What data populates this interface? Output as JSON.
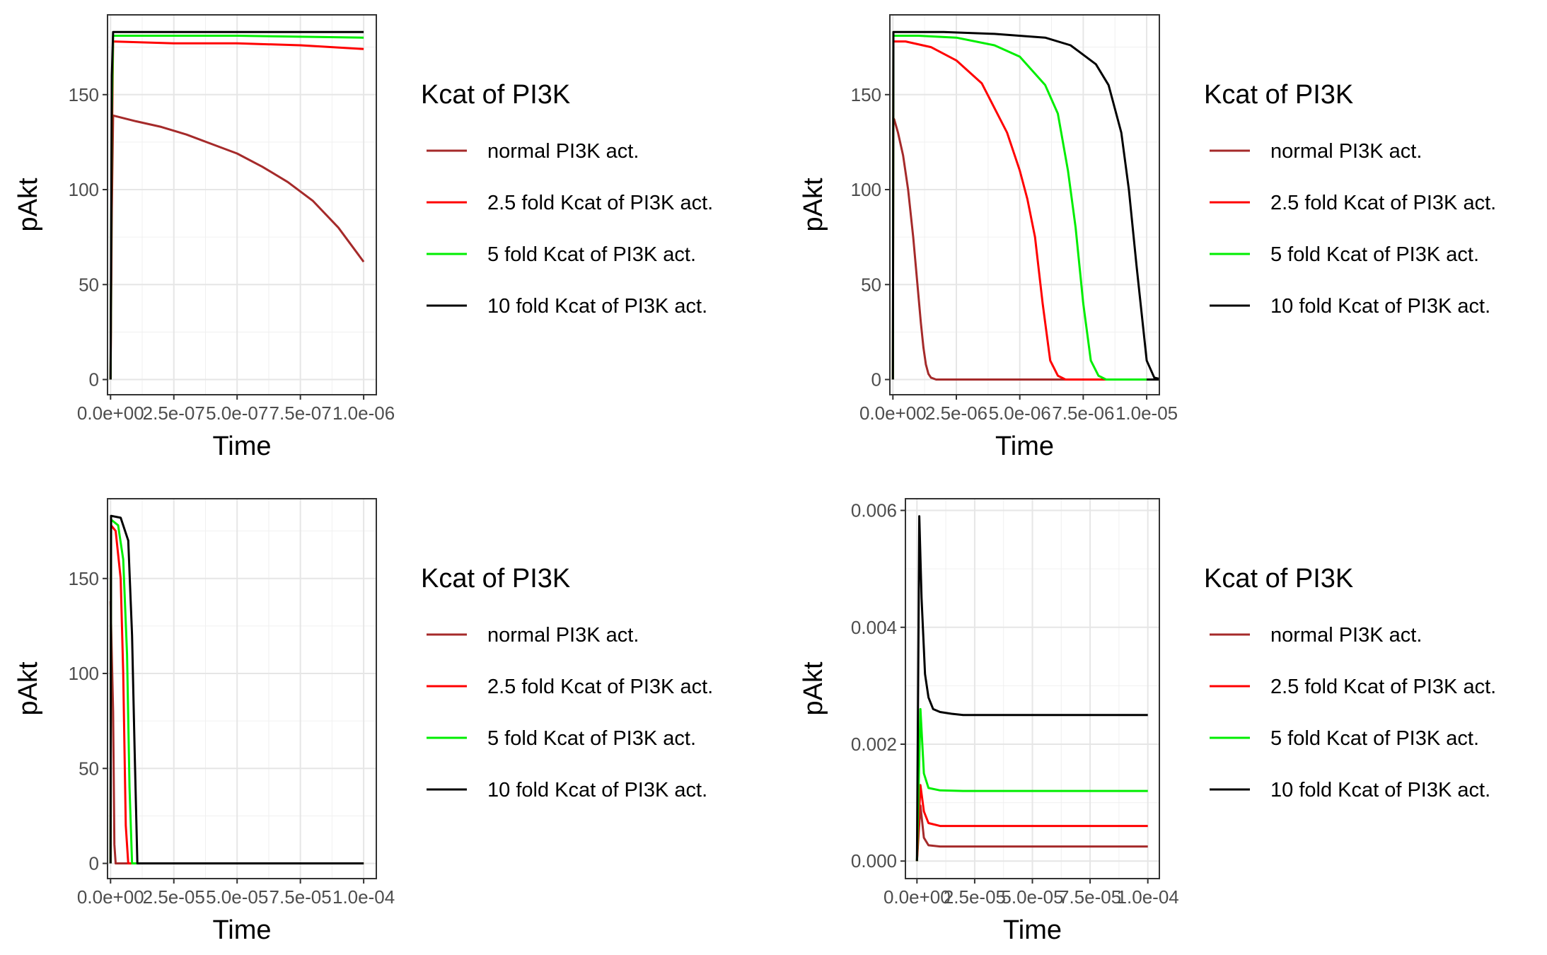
{
  "chart_data": [
    {
      "type": "line",
      "xlabel": "Time",
      "ylabel": "pAkt",
      "xlim": [
        -1.2e-08,
        1.05e-06
      ],
      "ylim": [
        -8,
        192
      ],
      "xticks": [
        0,
        2.5e-07,
        5e-07,
        7.5e-07,
        1e-06
      ],
      "xtick_labels": [
        "0.0e+00",
        "2.5e-07",
        "5.0e-07",
        "7.5e-07",
        "1.0e-06"
      ],
      "yticks": [
        0,
        50,
        100,
        150
      ],
      "ytick_labels": [
        "0",
        "50",
        "100",
        "150"
      ],
      "legend": {
        "title": "Kcat of PI3K",
        "position": "right"
      },
      "series": [
        {
          "name": "normal PI3K act.",
          "color": "#a52a2a",
          "x": [
            0,
            5e-09,
            1e-08,
            1e-07,
            2e-07,
            3e-07,
            4e-07,
            5e-07,
            6e-07,
            7e-07,
            8e-07,
            9e-07,
            1e-06
          ],
          "y": [
            0,
            90,
            139,
            136,
            133,
            129,
            124,
            119,
            112,
            104,
            94,
            80,
            62
          ]
        },
        {
          "name": "2.5 fold Kcat of PI3K act.",
          "color": "#ff0000",
          "x": [
            0,
            5e-09,
            1e-08,
            2.5e-07,
            5e-07,
            7.5e-07,
            1e-06
          ],
          "y": [
            0,
            120,
            178,
            177,
            177,
            176,
            174
          ]
        },
        {
          "name": "5 fold Kcat of PI3K act.",
          "color": "#00ee00",
          "x": [
            0,
            5e-09,
            1e-08,
            5e-07,
            1e-06
          ],
          "y": [
            0,
            140,
            181,
            181,
            180
          ]
        },
        {
          "name": "10 fold Kcat of PI3K act.",
          "color": "#000000",
          "x": [
            0,
            5e-09,
            1e-08,
            5e-07,
            1e-06
          ],
          "y": [
            0,
            160,
            183,
            183,
            183
          ]
        }
      ]
    },
    {
      "type": "line",
      "xlabel": "Time",
      "ylabel": "pAkt",
      "xlim": [
        -1.2e-07,
        1.05e-05
      ],
      "ylim": [
        -8,
        192
      ],
      "xticks": [
        0,
        2.5e-06,
        5e-06,
        7.5e-06,
        1e-05
      ],
      "xtick_labels": [
        "0.0e+00",
        "2.5e-06",
        "5.0e-06",
        "7.5e-06",
        "1.0e-05"
      ],
      "yticks": [
        0,
        50,
        100,
        150
      ],
      "ytick_labels": [
        "0",
        "50",
        "100",
        "150"
      ],
      "legend": {
        "title": "Kcat of PI3K",
        "position": "right"
      },
      "series": [
        {
          "name": "normal PI3K act.",
          "color": "#a52a2a",
          "x": [
            0,
            5e-08,
            2e-07,
            4e-07,
            6e-07,
            8e-07,
            1e-06,
            1.1e-06,
            1.2e-06,
            1.3e-06,
            1.4e-06,
            1.5e-06,
            1.7e-06,
            2e-06,
            1e-05
          ],
          "y": [
            138,
            137,
            130,
            118,
            100,
            75,
            45,
            30,
            17,
            8,
            3,
            1,
            0,
            0,
            0
          ]
        },
        {
          "name": "2.5 fold Kcat of PI3K act.",
          "color": "#ff0000",
          "x": [
            0,
            2e-08,
            5e-07,
            1.5e-06,
            2.5e-06,
            3.5e-06,
            4.5e-06,
            5e-06,
            5.3e-06,
            5.6e-06,
            5.9e-06,
            6.2e-06,
            6.5e-06,
            6.8e-06,
            1e-05
          ],
          "y": [
            0,
            178,
            178,
            175,
            168,
            156,
            130,
            110,
            95,
            75,
            40,
            10,
            2,
            0,
            0
          ]
        },
        {
          "name": "5 fold Kcat of PI3K act.",
          "color": "#00ee00",
          "x": [
            0,
            2e-08,
            1e-06,
            2.5e-06,
            4e-06,
            5e-06,
            6e-06,
            6.5e-06,
            6.9e-06,
            7.2e-06,
            7.5e-06,
            7.8e-06,
            8.1e-06,
            8.4e-06,
            1e-05
          ],
          "y": [
            0,
            181,
            181,
            180,
            176,
            170,
            155,
            140,
            110,
            80,
            40,
            10,
            2,
            0,
            0
          ]
        },
        {
          "name": "10 fold Kcat of PI3K act.",
          "color": "#000000",
          "x": [
            0,
            2e-08,
            2e-06,
            4e-06,
            6e-06,
            7e-06,
            8e-06,
            8.5e-06,
            9e-06,
            9.3e-06,
            9.6e-06,
            1e-05,
            1.03e-05,
            1.06e-05
          ],
          "y": [
            0,
            183,
            183,
            182,
            180,
            176,
            166,
            155,
            130,
            100,
            60,
            10,
            1,
            0
          ]
        },
        {
          "name": "",
          "color": "#000000",
          "x": [
            1.06e-05,
            1e-05
          ],
          "y": [
            0,
            0
          ]
        }
      ]
    },
    {
      "type": "line",
      "xlabel": "Time",
      "ylabel": "pAkt",
      "xlim": [
        -1.2e-06,
        0.000105
      ],
      "ylim": [
        -8,
        192
      ],
      "xticks": [
        0,
        2.5e-05,
        5e-05,
        7.5e-05,
        0.0001
      ],
      "xtick_labels": [
        "0.0e+00",
        "2.5e-05",
        "5.0e-05",
        "7.5e-05",
        "1.0e-04"
      ],
      "yticks": [
        0,
        50,
        100,
        150
      ],
      "ytick_labels": [
        "0",
        "50",
        "100",
        "150"
      ],
      "legend": {
        "title": "Kcat of PI3K",
        "position": "right"
      },
      "series": [
        {
          "name": "normal PI3K act.",
          "color": "#a52a2a",
          "x": [
            0,
            1e-06,
            1.5e-06,
            2e-06,
            0.0001
          ],
          "y": [
            138,
            80,
            10,
            0,
            0
          ]
        },
        {
          "name": "2.5 fold Kcat of PI3K act.",
          "color": "#ff0000",
          "x": [
            0,
            2e-07,
            2e-06,
            4e-06,
            5e-06,
            6e-06,
            7e-06,
            0.0001
          ],
          "y": [
            0,
            178,
            175,
            150,
            100,
            20,
            0,
            0
          ]
        },
        {
          "name": "5 fold Kcat of PI3K act.",
          "color": "#00ee00",
          "x": [
            0,
            2e-07,
            3e-06,
            5e-06,
            6.5e-06,
            7.5e-06,
            8.5e-06,
            0.0001
          ],
          "y": [
            0,
            181,
            178,
            160,
            110,
            40,
            0,
            0
          ]
        },
        {
          "name": "10 fold Kcat of PI3K act.",
          "color": "#000000",
          "x": [
            0,
            2e-07,
            4e-06,
            7e-06,
            8.5e-06,
            9.5e-06,
            1.06e-05,
            0.0001
          ],
          "y": [
            0,
            183,
            182,
            170,
            120,
            60,
            0,
            0
          ]
        }
      ]
    },
    {
      "type": "line",
      "xlabel": "Time",
      "ylabel": "pAkt",
      "xlim": [
        -5e-06,
        0.000105
      ],
      "ylim": [
        -0.0003,
        0.0062
      ],
      "xticks": [
        0,
        2.5e-05,
        5e-05,
        7.5e-05,
        0.0001
      ],
      "xtick_labels": [
        "0.0e+00",
        "2.5e-05",
        "5.0e-05",
        "7.5e-05",
        "1.0e-04"
      ],
      "yticks": [
        0,
        0.002,
        0.004,
        0.006
      ],
      "ytick_labels": [
        "0.000",
        "0.002",
        "0.004",
        "0.006"
      ],
      "legend": {
        "title": "Kcat of PI3K",
        "position": "right"
      },
      "series": [
        {
          "name": "normal PI3K act.",
          "color": "#a52a2a",
          "x": [
            0,
            1.5e-06,
            3e-06,
            5e-06,
            1e-05,
            0.0001
          ],
          "y": [
            0,
            0.00095,
            0.0004,
            0.00027,
            0.00025,
            0.00025
          ]
        },
        {
          "name": "2.5 fold Kcat of PI3K act.",
          "color": "#ff0000",
          "x": [
            0,
            1.5e-06,
            3e-06,
            5e-06,
            1e-05,
            0.0001
          ],
          "y": [
            0,
            0.0013,
            0.00085,
            0.00065,
            0.0006,
            0.0006
          ]
        },
        {
          "name": "5 fold Kcat of PI3K act.",
          "color": "#00ee00",
          "x": [
            0,
            1.5e-06,
            3e-06,
            5e-06,
            1e-05,
            2e-05,
            0.0001
          ],
          "y": [
            0,
            0.0026,
            0.0015,
            0.00125,
            0.00121,
            0.0012,
            0.0012
          ]
        },
        {
          "name": "10 fold Kcat of PI3K act.",
          "color": "#000000",
          "x": [
            0,
            1e-06,
            2e-06,
            3.5e-06,
            5e-06,
            7e-06,
            1e-05,
            1.5e-05,
            2e-05,
            0.0001
          ],
          "y": [
            0,
            0.0059,
            0.0045,
            0.0032,
            0.0028,
            0.0026,
            0.00255,
            0.00252,
            0.0025,
            0.0025
          ]
        }
      ]
    }
  ]
}
